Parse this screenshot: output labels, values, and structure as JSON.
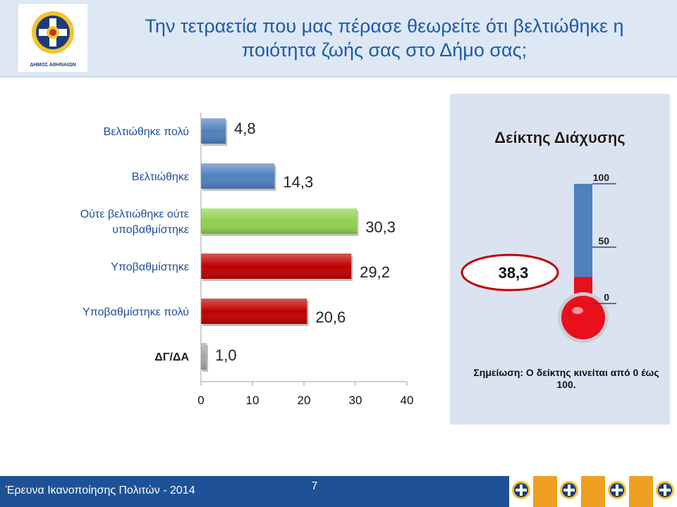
{
  "header": {
    "logo_name": "ΔΗΜΟΣ ΑΘΗΝΑΙΩΝ",
    "title_line1": "Την τετραετία που μας πέρασε θεωρείτε ότι βελτιώθηκε η",
    "title_line2": "ποιότητα ζωής σας στο Δήμο σας;"
  },
  "chart_data": {
    "type": "bar",
    "orientation": "horizontal",
    "categories": [
      "Βελτιώθηκε πολύ",
      "Βελτιώθηκε",
      "Ούτε βελτιώθηκε ούτε υποβαθμίστηκε",
      "Υποβαθμίστηκε",
      "Υποβαθμίστηκε πολύ",
      "ΔΓ/ΔΑ"
    ],
    "values": [
      4.8,
      14.3,
      30.3,
      29.2,
      20.6,
      1.0
    ],
    "value_labels": [
      "4,8",
      "14,3",
      "30,3",
      "29,2",
      "20,6",
      "1,0"
    ],
    "colors": [
      "#4f81bd",
      "#4f81bd",
      "#92d050",
      "#c00000",
      "#c00000",
      "#a6a6a6"
    ],
    "xlim": [
      0,
      40
    ],
    "xticks": [
      0,
      10,
      20,
      30,
      40
    ],
    "grid": false,
    "legend": "none"
  },
  "index_panel": {
    "title": "Δείκτης Διάχυσης",
    "value": 38.3,
    "value_label": "38,3",
    "scale_min": 0,
    "scale_max": 100,
    "scale_labels": [
      "100",
      "50",
      "0"
    ],
    "note": "Σημείωση: Ο δείκτης κινείται από 0 έως 100.",
    "colors": {
      "tube": "#4f81bd",
      "mercury": "#e8101a",
      "panel": "#dbe3f1"
    }
  },
  "footer": {
    "text": "Έρευνα Ικανοποίησης Πολιτών - 2014",
    "page": "7",
    "strip_colors": [
      "#ffffff",
      "#f0a020",
      "#ffffff",
      "#f0a020",
      "#ffffff",
      "#f0a020",
      "#ffffff"
    ]
  }
}
